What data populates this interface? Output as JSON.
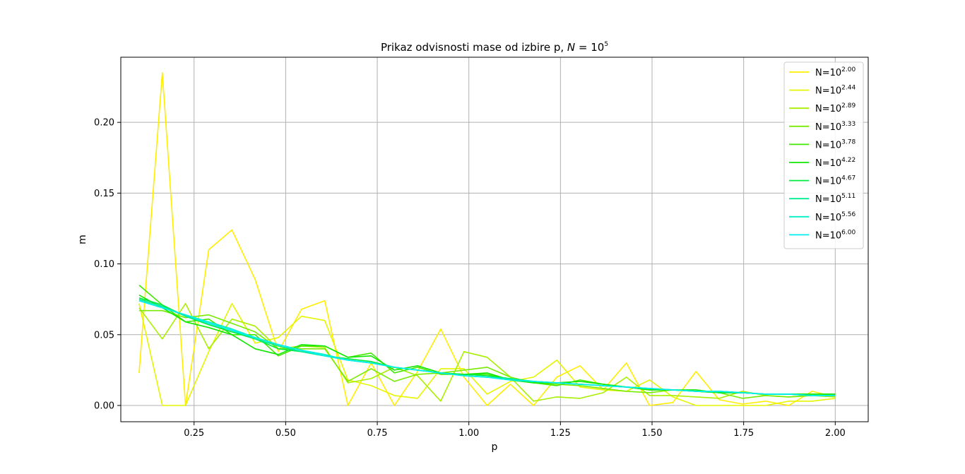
{
  "chart_data": {
    "type": "line",
    "title_prefix": "Prikaz odvisnosti mase od izbire p, ",
    "title_math": "N",
    "title_eq": " = 10",
    "title_exp": "5",
    "xlabel": "p",
    "ylabel": "m",
    "xlim": [
      0.05,
      2.09
    ],
    "ylim": [
      -0.0115,
      0.246
    ],
    "xticks": [
      0.25,
      0.5,
      0.75,
      1.0,
      1.25,
      1.5,
      1.75,
      2.0
    ],
    "xtick_labels": [
      "0.25",
      "0.50",
      "0.75",
      "1.00",
      "1.25",
      "1.50",
      "1.75",
      "2.00"
    ],
    "yticks": [
      0.0,
      0.05,
      0.1,
      0.15,
      0.2
    ],
    "ytick_labels": [
      "0.00",
      "0.05",
      "0.10",
      "0.15",
      "0.20"
    ],
    "grid": true,
    "legend_position": "top-right",
    "x": [
      0.1,
      0.1633,
      0.2267,
      0.29,
      0.3533,
      0.4167,
      0.48,
      0.5433,
      0.6067,
      0.67,
      0.7333,
      0.7967,
      0.86,
      0.9233,
      0.9867,
      1.05,
      1.1133,
      1.1767,
      1.24,
      1.3033,
      1.3667,
      1.43,
      1.4933,
      1.5567,
      1.62,
      1.6833,
      1.7467,
      1.81,
      1.8733,
      1.9367,
      2.0
    ],
    "series": [
      {
        "name_base": "N=10",
        "name_exp": "2.00",
        "color": "#ffee00",
        "values": [
          0.023,
          0.235,
          0.0,
          0.11,
          0.124,
          0.089,
          0.038,
          0.068,
          0.074,
          0.0,
          0.03,
          0.0,
          0.024,
          0.054,
          0.02,
          0.0,
          0.015,
          0.0,
          0.02,
          0.028,
          0.011,
          0.03,
          0.0,
          0.002,
          0.024,
          0.004,
          0.001,
          0.003,
          0.0,
          0.01,
          0.006
        ]
      },
      {
        "name_base": "N=10",
        "name_exp": "2.44",
        "color": "#e6f500",
        "values": [
          0.072,
          0.0,
          0.0,
          0.038,
          0.072,
          0.044,
          0.048,
          0.063,
          0.06,
          0.018,
          0.014,
          0.007,
          0.005,
          0.026,
          0.026,
          0.008,
          0.017,
          0.02,
          0.032,
          0.013,
          0.011,
          0.01,
          0.018,
          0.006,
          0.0,
          0.0,
          0.0,
          0.0,
          0.003,
          0.003,
          0.005
        ]
      },
      {
        "name_base": "N=10",
        "name_exp": "2.89",
        "color": "#a8f000",
        "values": [
          0.069,
          0.047,
          0.072,
          0.04,
          0.061,
          0.056,
          0.04,
          0.042,
          0.041,
          0.016,
          0.019,
          0.027,
          0.021,
          0.003,
          0.038,
          0.034,
          0.02,
          0.003,
          0.006,
          0.005,
          0.009,
          0.02,
          0.007,
          0.007,
          0.006,
          0.005,
          0.01,
          0.007,
          0.006,
          0.007,
          0.006
        ]
      },
      {
        "name_base": "N=10",
        "name_exp": "3.33",
        "color": "#78ec00",
        "values": [
          0.067,
          0.067,
          0.062,
          0.064,
          0.058,
          0.052,
          0.04,
          0.04,
          0.04,
          0.017,
          0.026,
          0.017,
          0.022,
          0.023,
          0.025,
          0.027,
          0.02,
          0.016,
          0.015,
          0.014,
          0.012,
          0.01,
          0.009,
          0.011,
          0.01,
          0.009,
          0.005,
          0.007,
          0.006,
          0.007,
          0.007
        ]
      },
      {
        "name_base": "N=10",
        "name_exp": "3.78",
        "color": "#40e800",
        "values": [
          0.085,
          0.071,
          0.059,
          0.061,
          0.05,
          0.05,
          0.035,
          0.042,
          0.042,
          0.034,
          0.037,
          0.023,
          0.027,
          0.022,
          0.022,
          0.022,
          0.018,
          0.016,
          0.014,
          0.018,
          0.015,
          0.013,
          0.011,
          0.011,
          0.01,
          0.009,
          0.009,
          0.008,
          0.008,
          0.008,
          0.008
        ]
      },
      {
        "name_base": "N=10",
        "name_exp": "4.22",
        "color": "#10e800",
        "values": [
          0.078,
          0.069,
          0.059,
          0.055,
          0.05,
          0.04,
          0.036,
          0.043,
          0.042,
          0.034,
          0.035,
          0.025,
          0.028,
          0.023,
          0.022,
          0.023,
          0.018,
          0.016,
          0.016,
          0.017,
          0.015,
          0.013,
          0.011,
          0.011,
          0.011,
          0.009,
          0.009,
          0.008,
          0.008,
          0.008,
          0.008
        ]
      },
      {
        "name_base": "N=10",
        "name_exp": "4.67",
        "color": "#00eb40",
        "values": [
          0.076,
          0.071,
          0.063,
          0.057,
          0.052,
          0.047,
          0.04,
          0.038,
          0.035,
          0.033,
          0.031,
          0.027,
          0.025,
          0.023,
          0.022,
          0.021,
          0.019,
          0.017,
          0.016,
          0.015,
          0.014,
          0.013,
          0.012,
          0.011,
          0.01,
          0.009,
          0.009,
          0.008,
          0.008,
          0.007,
          0.007
        ]
      },
      {
        "name_base": "N=10",
        "name_exp": "5.11",
        "color": "#00ed90",
        "values": [
          0.075,
          0.07,
          0.063,
          0.058,
          0.053,
          0.047,
          0.042,
          0.038,
          0.035,
          0.032,
          0.03,
          0.027,
          0.025,
          0.023,
          0.021,
          0.02,
          0.019,
          0.017,
          0.016,
          0.015,
          0.014,
          0.013,
          0.012,
          0.011,
          0.01,
          0.01,
          0.009,
          0.008,
          0.008,
          0.007,
          0.007
        ]
      },
      {
        "name_base": "N=10",
        "name_exp": "5.56",
        "color": "#00f0c8",
        "values": [
          0.074,
          0.069,
          0.064,
          0.059,
          0.054,
          0.048,
          0.043,
          0.039,
          0.036,
          0.032,
          0.03,
          0.027,
          0.025,
          0.023,
          0.021,
          0.02,
          0.018,
          0.017,
          0.016,
          0.015,
          0.014,
          0.013,
          0.012,
          0.011,
          0.01,
          0.01,
          0.009,
          0.008,
          0.008,
          0.007,
          0.007
        ]
      },
      {
        "name_base": "N=10",
        "name_exp": "6.00",
        "color": "#00eef0",
        "values": [
          0.074,
          0.069,
          0.064,
          0.058,
          0.053,
          0.048,
          0.043,
          0.039,
          0.035,
          0.032,
          0.03,
          0.027,
          0.025,
          0.023,
          0.021,
          0.02,
          0.018,
          0.017,
          0.016,
          0.015,
          0.014,
          0.013,
          0.012,
          0.011,
          0.01,
          0.01,
          0.009,
          0.008,
          0.008,
          0.007,
          0.007
        ]
      }
    ]
  }
}
